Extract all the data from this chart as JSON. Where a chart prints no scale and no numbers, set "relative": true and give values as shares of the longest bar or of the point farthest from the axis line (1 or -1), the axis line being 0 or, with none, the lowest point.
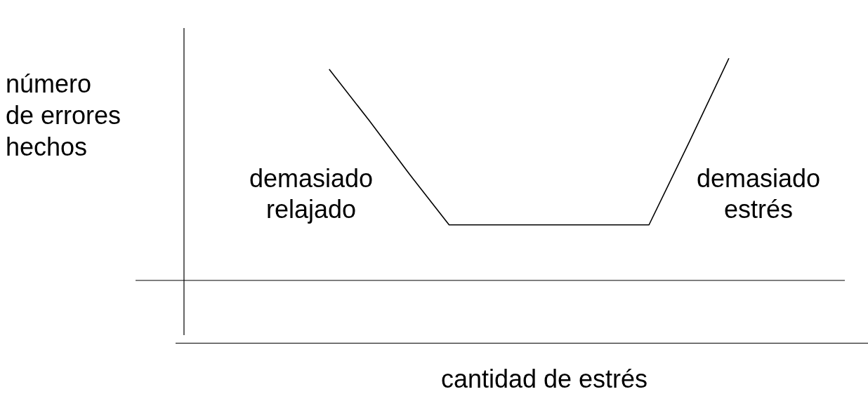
{
  "chart_data": {
    "type": "line",
    "relative": true,
    "xlabel": "cantidad de estrés",
    "ylabel": "número de errores hechos",
    "marker": "none",
    "legend": false,
    "categories": [
      null,
      null,
      null,
      null,
      null,
      null,
      null,
      null,
      null,
      null,
      null,
      null,
      null,
      null,
      null
    ],
    "series": [
      {
        "color": "#000000",
        "values": [
          null,
          null,
          null,
          null,
          0.95,
          0.72,
          0.48,
          0.25,
          0.25,
          0.25,
          0.25,
          0.25,
          0.25,
          0.62,
          1
        ]
      }
    ],
    "annotations": [
      "demasiado relajado",
      "demasiado estrés"
    ]
  }
}
